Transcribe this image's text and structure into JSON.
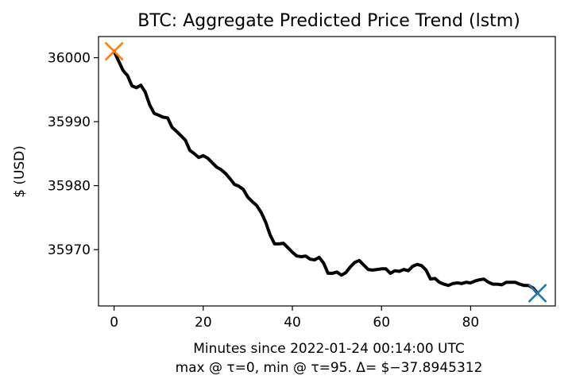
{
  "chart_data": {
    "type": "line",
    "title": "BTC: Aggregate Predicted Price Trend (lstm)",
    "xlabel": "Minutes since 2022-01-24 00:14:00 UTC",
    "xlabel_line2": "max @ τ=0, min @ τ=95. Δ= $−37.8945312",
    "ylabel": "$ (USD)",
    "xlim": [
      -3.5,
      99
    ],
    "ylim": [
      35961.2,
      36003.3
    ],
    "xticks": [
      0,
      20,
      40,
      60,
      80
    ],
    "xtick_labels": [
      "0",
      "20",
      "40",
      "60",
      "80"
    ],
    "yticks": [
      35970,
      35980,
      35990,
      36000
    ],
    "ytick_labels": [
      "35970",
      "35980",
      "35990",
      "36000"
    ],
    "grid": false,
    "series": [
      {
        "color": "#000000",
        "x": [
          0,
          1,
          2,
          3,
          4,
          5,
          6,
          7,
          8,
          9,
          10,
          11,
          12,
          13,
          14,
          15,
          16,
          17,
          18,
          19,
          20,
          21,
          22,
          23,
          24,
          25,
          26,
          27,
          28,
          29,
          30,
          31,
          32,
          33,
          34,
          35,
          36,
          37,
          38,
          39,
          40,
          41,
          42,
          43,
          44,
          45,
          46,
          47,
          48,
          49,
          50,
          51,
          52,
          53,
          54,
          55,
          56,
          57,
          58,
          59,
          60,
          61,
          62,
          63,
          64,
          65,
          66,
          67,
          68,
          69,
          70,
          71,
          72,
          73,
          74,
          75,
          76,
          77,
          78,
          79,
          80,
          81,
          82,
          83,
          84,
          85,
          86,
          87,
          88,
          89,
          90,
          91,
          92,
          93,
          94,
          95
        ],
        "y": [
          36001.0,
          35999.5,
          35998.0,
          35997.2,
          35995.6,
          35995.3,
          35995.7,
          35994.6,
          35992.6,
          35991.3,
          35991.0,
          35990.7,
          35990.6,
          35989.1,
          35988.5,
          35987.8,
          35987.1,
          35985.5,
          35985.0,
          35984.4,
          35984.7,
          35984.3,
          35983.6,
          35982.9,
          35982.5,
          35981.9,
          35981.1,
          35980.2,
          35979.9,
          35979.4,
          35978.2,
          35977.5,
          35976.9,
          35975.8,
          35974.3,
          35972.3,
          35970.9,
          35970.9,
          35971.0,
          35970.3,
          35969.6,
          35969.0,
          35968.9,
          35969.0,
          35968.5,
          35968.4,
          35968.8,
          35967.9,
          35966.3,
          35966.3,
          35966.5,
          35966.0,
          35966.4,
          35967.3,
          35968.0,
          35968.3,
          35967.6,
          35966.9,
          35966.8,
          35966.9,
          35967.0,
          35967.0,
          35966.3,
          35966.7,
          35966.6,
          35966.9,
          35966.7,
          35967.4,
          35967.7,
          35967.5,
          35966.8,
          35965.4,
          35965.5,
          35964.9,
          35964.6,
          35964.4,
          35964.7,
          35964.8,
          35964.7,
          35964.9,
          35964.8,
          35965.1,
          35965.3,
          35965.4,
          35964.9,
          35964.6,
          35964.6,
          35964.5,
          35964.9,
          35964.9,
          35964.9,
          35964.6,
          35964.4,
          35964.4,
          35964.0,
          35963.2
        ]
      }
    ],
    "markers": [
      {
        "label": "max",
        "x": 0,
        "y": 36001.0,
        "color": "#ff7f0e",
        "shape": "x"
      },
      {
        "label": "min",
        "x": 95,
        "y": 35963.2,
        "color": "#1f77b4",
        "shape": "x"
      }
    ]
  }
}
